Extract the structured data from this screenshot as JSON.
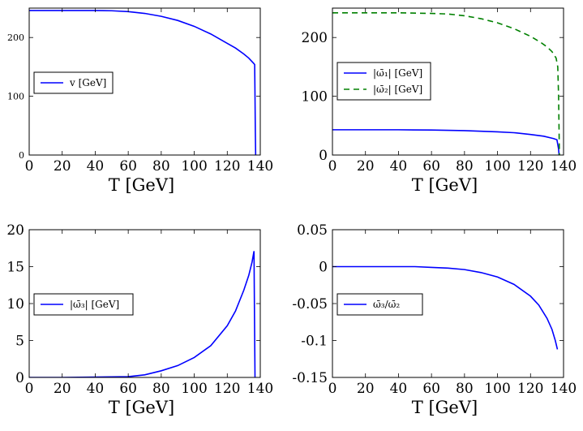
{
  "chart_data": [
    {
      "type": "line",
      "xlabel": "T [GeV]",
      "ylabel": "",
      "xlim": [
        0,
        140
      ],
      "ylim": [
        0,
        250
      ],
      "xticks": [
        "0",
        "20",
        "40",
        "60",
        "80",
        "100",
        "120",
        "140"
      ],
      "yticks": [
        {
          "value": 0,
          "label": "0"
        },
        {
          "value": 100,
          "label": "100"
        },
        {
          "value": 200,
          "label": "200"
        }
      ],
      "legend_position": "center-left",
      "series": [
        {
          "name": "v [GeV]",
          "color": "#0000ff",
          "dash": "solid",
          "points": [
            [
              0,
              246
            ],
            [
              20,
              246
            ],
            [
              40,
              246
            ],
            [
              50,
              245.5
            ],
            [
              60,
              244
            ],
            [
              70,
              241
            ],
            [
              80,
              236
            ],
            [
              90,
              229
            ],
            [
              100,
              219
            ],
            [
              110,
              206
            ],
            [
              120,
              190
            ],
            [
              125,
              182
            ],
            [
              130,
              172
            ],
            [
              133,
              165
            ],
            [
              136,
              156
            ],
            [
              136.6,
              154
            ],
            [
              136.8,
              100
            ],
            [
              137,
              40
            ],
            [
              137.2,
              0
            ]
          ]
        }
      ]
    },
    {
      "type": "line",
      "xlabel": "T [GeV]",
      "ylabel": "",
      "xlim": [
        0,
        140
      ],
      "ylim": [
        0,
        250
      ],
      "xticks": [
        "0",
        "20",
        "40",
        "60",
        "80",
        "100",
        "120",
        "140"
      ],
      "yticks": [
        {
          "value": 0,
          "label": "0"
        },
        {
          "value": 100,
          "label": "100"
        },
        {
          "value": 200,
          "label": "200"
        }
      ],
      "legend_position": "center-left",
      "series": [
        {
          "name": "|ω̄₁| [GeV]",
          "color": "#0000ff",
          "dash": "solid",
          "points": [
            [
              0,
              43
            ],
            [
              20,
              43
            ],
            [
              40,
              43
            ],
            [
              60,
              42.5
            ],
            [
              80,
              41.5
            ],
            [
              100,
              39.5
            ],
            [
              110,
              38
            ],
            [
              120,
              35
            ],
            [
              128,
              32
            ],
            [
              134,
              28
            ],
            [
              136,
              26
            ],
            [
              137,
              10
            ],
            [
              137.3,
              0
            ]
          ]
        },
        {
          "name": "|ω̄₂| [GeV]",
          "color": "#008000",
          "dash": "dashed",
          "points": [
            [
              0,
              242
            ],
            [
              20,
              242
            ],
            [
              40,
              242
            ],
            [
              60,
              241
            ],
            [
              70,
              240
            ],
            [
              80,
              237
            ],
            [
              90,
              232
            ],
            [
              100,
              225
            ],
            [
              110,
              215
            ],
            [
              120,
              202
            ],
            [
              126,
              192
            ],
            [
              130,
              184
            ],
            [
              133,
              176
            ],
            [
              135.5,
              165
            ],
            [
              136.5,
              150
            ],
            [
              137,
              100
            ],
            [
              137.3,
              40
            ],
            [
              137.5,
              0
            ]
          ]
        }
      ]
    },
    {
      "type": "line",
      "xlabel": "T [GeV]",
      "ylabel": "",
      "xlim": [
        0,
        140
      ],
      "ylim": [
        0,
        20
      ],
      "xticks": [
        "0",
        "20",
        "40",
        "60",
        "80",
        "100",
        "120",
        "140"
      ],
      "yticks": [
        {
          "value": 0,
          "label": "0"
        },
        {
          "value": 5,
          "label": "5"
        },
        {
          "value": 10,
          "label": "10"
        },
        {
          "value": 15,
          "label": "15"
        },
        {
          "value": 20,
          "label": "20"
        }
      ],
      "legend_position": "center-left",
      "series": [
        {
          "name": "|ω̄₃| [GeV]",
          "color": "#0000ff",
          "dash": "solid",
          "points": [
            [
              0,
              0
            ],
            [
              20,
              0
            ],
            [
              40,
              0.05
            ],
            [
              60,
              0.1
            ],
            [
              70,
              0.35
            ],
            [
              80,
              0.9
            ],
            [
              90,
              1.6
            ],
            [
              100,
              2.7
            ],
            [
              110,
              4.3
            ],
            [
              120,
              7
            ],
            [
              125,
              9
            ],
            [
              130,
              11.8
            ],
            [
              133,
              13.8
            ],
            [
              135,
              15.6
            ],
            [
              136.2,
              17.1
            ],
            [
              136.5,
              8
            ],
            [
              136.8,
              0
            ]
          ]
        }
      ]
    },
    {
      "type": "line",
      "xlabel": "T [GeV]",
      "ylabel": "",
      "xlim": [
        0,
        140
      ],
      "ylim": [
        -0.15,
        0.05
      ],
      "xticks": [
        "0",
        "20",
        "40",
        "60",
        "80",
        "100",
        "120",
        "140"
      ],
      "yticks": [
        {
          "value": 0.05,
          "label": "0.05"
        },
        {
          "value": 0,
          "label": "0"
        },
        {
          "value": -0.05,
          "label": "-0.05"
        },
        {
          "value": -0.1,
          "label": "-0.1"
        },
        {
          "value": -0.15,
          "label": "-0.15"
        }
      ],
      "legend_position": "center-left",
      "series": [
        {
          "name": "ω̄₃/ω̄₂",
          "color": "#0000ff",
          "dash": "solid",
          "points": [
            [
              0,
              0
            ],
            [
              20,
              0
            ],
            [
              40,
              0
            ],
            [
              50,
              0
            ],
            [
              60,
              -0.001
            ],
            [
              70,
              -0.002
            ],
            [
              80,
              -0.004
            ],
            [
              90,
              -0.008
            ],
            [
              100,
              -0.014
            ],
            [
              110,
              -0.024
            ],
            [
              120,
              -0.04
            ],
            [
              125,
              -0.052
            ],
            [
              130,
              -0.07
            ],
            [
              133,
              -0.085
            ],
            [
              135,
              -0.1
            ],
            [
              136.3,
              -0.112
            ]
          ]
        }
      ]
    }
  ]
}
